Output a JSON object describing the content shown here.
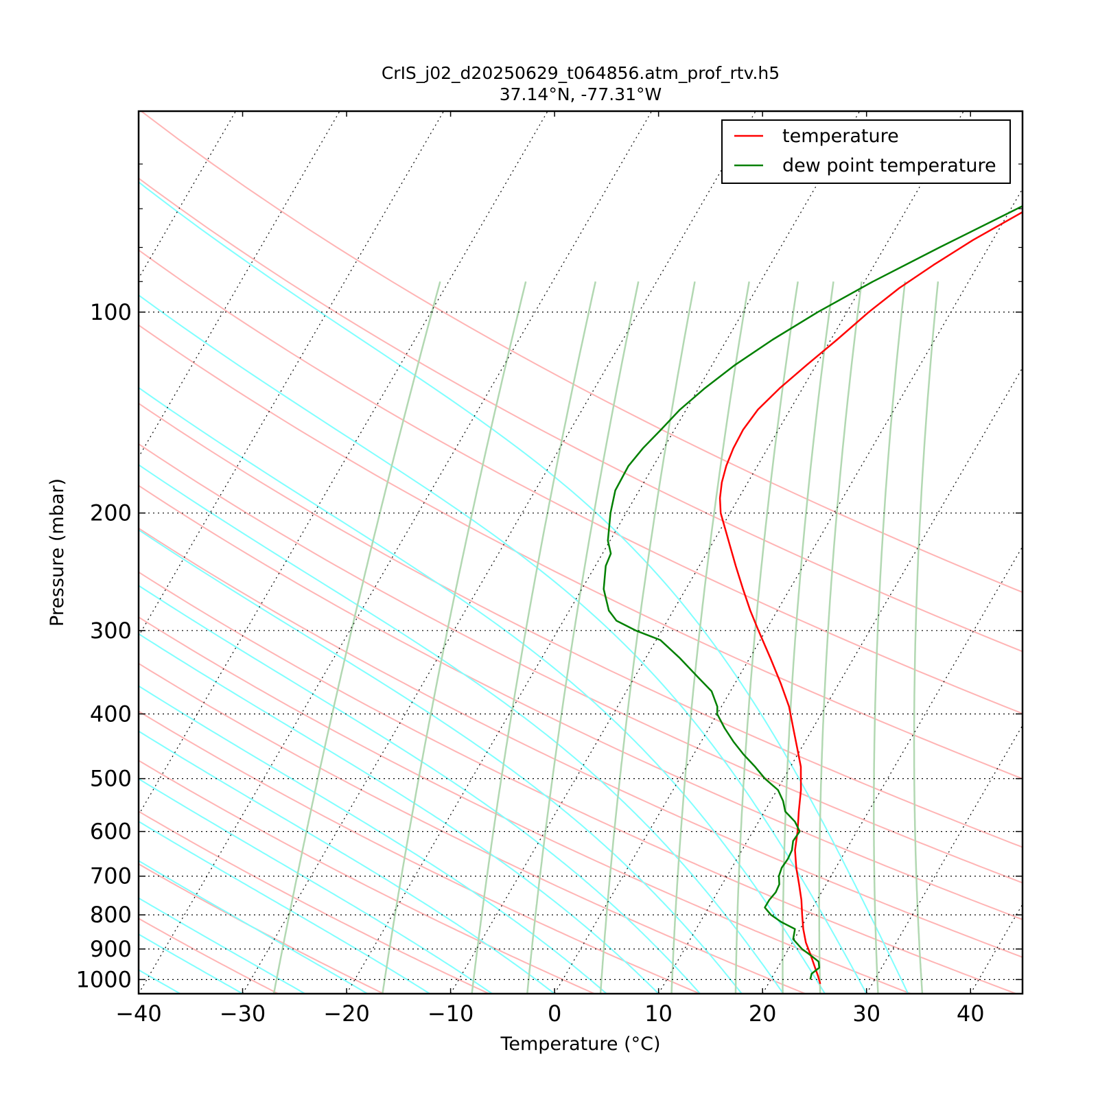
{
  "chart_data": {
    "type": "line",
    "diagram": "skew-T log-P",
    "title": "CrIS_j02_d20250629_t064856.atm_prof_rtv.h5",
    "subtitle": "37.14$^\\circ$N, -77.31$^\\circ$W",
    "subtitle_display": "37.14°N, -77.31°W",
    "xlabel": "Temperature (°C)",
    "ylabel": "Pressure (mbar)",
    "xlim": [
      -40,
      45
    ],
    "ylim": [
      1050,
      50
    ],
    "yscale": "log",
    "x_ticks": [
      "−40",
      "−30",
      "−20",
      "−10",
      "0",
      "10",
      "20",
      "30",
      "40"
    ],
    "x_tick_values": [
      -40,
      -30,
      -20,
      -10,
      0,
      10,
      20,
      30,
      40
    ],
    "y_ticks": [
      "100",
      "200",
      "300",
      "400",
      "500",
      "600",
      "700",
      "800",
      "900",
      "1000"
    ],
    "y_tick_values": [
      100,
      200,
      300,
      400,
      500,
      600,
      700,
      800,
      900,
      1000
    ],
    "grid": "horizontal dotted isobars and skewed dotted isotherms",
    "legend": {
      "placement": "top-right",
      "entries": [
        "temperature",
        "dew point temperature"
      ]
    },
    "colors": {
      "temperature": "#ff0000",
      "dew_point": "#008000",
      "dry_adiabats": "#ffb4b4",
      "moist_adiabats": "#7fffff",
      "mixing_ratio": "#b2d8b2",
      "grid": "#000000"
    },
    "series": [
      {
        "name": "temperature",
        "points": [
          [
            1015,
            25.0
          ],
          [
            990,
            24.4
          ],
          [
            960,
            23.6
          ],
          [
            920,
            22.5
          ],
          [
            880,
            21.3
          ],
          [
            840,
            20.3
          ],
          [
            800,
            19.4
          ],
          [
            760,
            18.5
          ],
          [
            720,
            17.4
          ],
          [
            680,
            16.2
          ],
          [
            640,
            15.1
          ],
          [
            600,
            14.3
          ],
          [
            560,
            13.3
          ],
          [
            520,
            12.3
          ],
          [
            480,
            11.0
          ],
          [
            450,
            9.6
          ],
          [
            420,
            8.1
          ],
          [
            390,
            6.5
          ],
          [
            360,
            4.4
          ],
          [
            330,
            2.0
          ],
          [
            300,
            -0.7
          ],
          [
            280,
            -2.6
          ],
          [
            260,
            -4.5
          ],
          [
            240,
            -6.5
          ],
          [
            220,
            -8.6
          ],
          [
            200,
            -10.9
          ],
          [
            190,
            -11.8
          ],
          [
            180,
            -12.5
          ],
          [
            170,
            -13.0
          ],
          [
            160,
            -13.3
          ],
          [
            150,
            -13.4
          ],
          [
            140,
            -13.1
          ],
          [
            130,
            -12.2
          ],
          [
            120,
            -10.9
          ],
          [
            110,
            -9.4
          ],
          [
            100,
            -7.9
          ],
          [
            92,
            -6.3
          ],
          [
            85,
            -4.3
          ],
          [
            78,
            -1.9
          ],
          [
            70,
            1.7
          ],
          [
            62,
            6.4
          ],
          [
            56,
            10.9
          ],
          [
            51,
            15.2
          ]
        ]
      },
      {
        "name": "dew point temperature",
        "points": [
          [
            1000,
            23.8
          ],
          [
            980,
            23.6
          ],
          [
            960,
            24.0
          ],
          [
            940,
            23.6
          ],
          [
            920,
            22.5
          ],
          [
            900,
            21.3
          ],
          [
            870,
            19.9
          ],
          [
            840,
            19.5
          ],
          [
            820,
            17.8
          ],
          [
            800,
            16.4
          ],
          [
            780,
            15.4
          ],
          [
            760,
            15.4
          ],
          [
            740,
            15.6
          ],
          [
            720,
            15.5
          ],
          [
            700,
            15.0
          ],
          [
            680,
            14.8
          ],
          [
            660,
            14.9
          ],
          [
            640,
            14.8
          ],
          [
            620,
            14.4
          ],
          [
            600,
            14.5
          ],
          [
            580,
            13.5
          ],
          [
            560,
            12.0
          ],
          [
            540,
            11.2
          ],
          [
            520,
            10.1
          ],
          [
            500,
            8.2
          ],
          [
            480,
            6.6
          ],
          [
            460,
            4.8
          ],
          [
            440,
            3.1
          ],
          [
            420,
            1.5
          ],
          [
            400,
            0.0
          ],
          [
            390,
            -0.4
          ],
          [
            370,
            -1.8
          ],
          [
            350,
            -4.2
          ],
          [
            330,
            -6.7
          ],
          [
            310,
            -9.6
          ],
          [
            300,
            -12.5
          ],
          [
            290,
            -14.9
          ],
          [
            280,
            -16.2
          ],
          [
            260,
            -17.9
          ],
          [
            240,
            -19.0
          ],
          [
            230,
            -19.2
          ],
          [
            220,
            -20.2
          ],
          [
            200,
            -21.5
          ],
          [
            185,
            -22.3
          ],
          [
            170,
            -22.4
          ],
          [
            160,
            -22.0
          ],
          [
            150,
            -21.3
          ],
          [
            140,
            -20.6
          ],
          [
            130,
            -19.4
          ],
          [
            120,
            -17.8
          ],
          [
            110,
            -15.6
          ],
          [
            100,
            -12.8
          ],
          [
            90,
            -9.2
          ],
          [
            80,
            -4.7
          ],
          [
            70,
            0.6
          ],
          [
            60,
            6.7
          ],
          [
            50,
            13.6
          ]
        ]
      }
    ]
  }
}
